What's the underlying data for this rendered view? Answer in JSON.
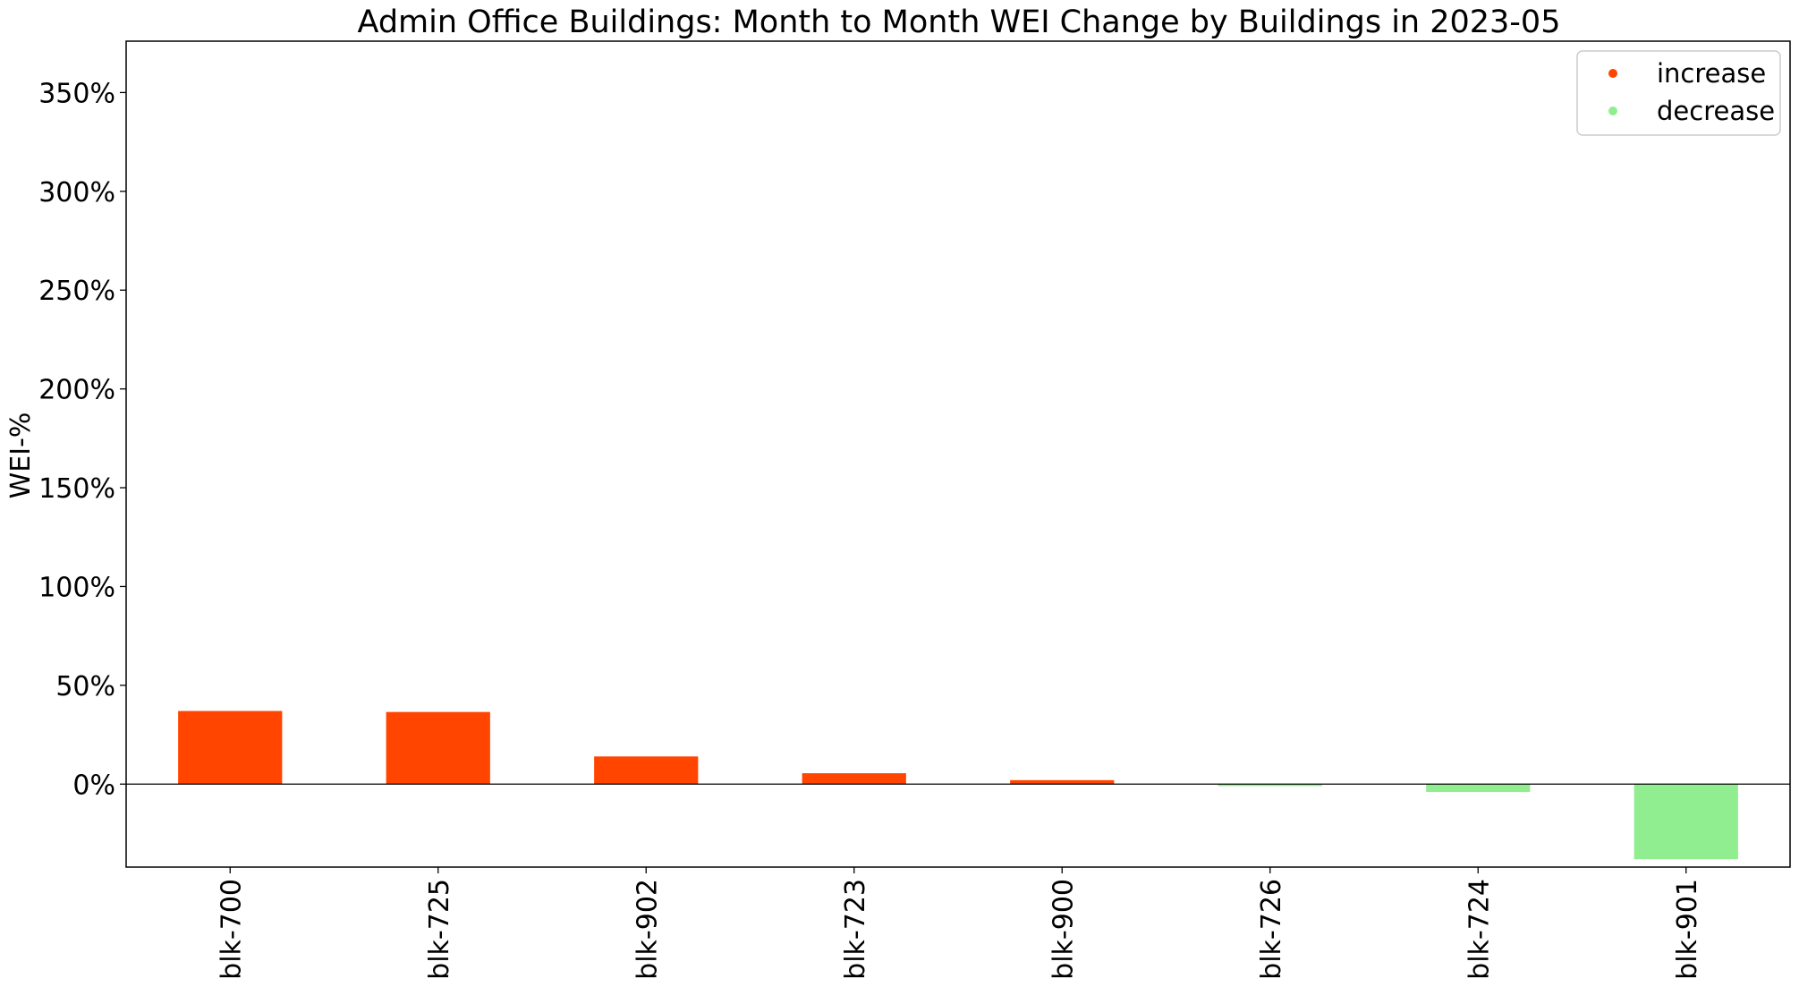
{
  "chart_data": {
    "type": "bar",
    "title": "Admin Office Buildings:  Month to Month WEI Change by Buildings in 2023-05",
    "xlabel": "",
    "ylabel": "WEI-%",
    "ylim": [
      -42,
      376
    ],
    "yticks": [
      0,
      50,
      100,
      150,
      200,
      250,
      300,
      350
    ],
    "ytick_labels": [
      "0%",
      "50%",
      "100%",
      "150%",
      "200%",
      "250%",
      "300%",
      "350%"
    ],
    "categories": [
      "blk-700",
      "blk-725",
      "blk-902",
      "blk-723",
      "blk-900",
      "blk-726",
      "blk-724",
      "blk-901"
    ],
    "values": [
      37,
      36.5,
      14,
      5.5,
      2,
      -1,
      -4,
      -38
    ],
    "colors": {
      "increase": "#ff4500",
      "decrease": "#90ee90"
    },
    "grid": false,
    "legend": {
      "position": "top-right",
      "entries": [
        {
          "label": "increase",
          "color": "#ff4500"
        },
        {
          "label": "decrease",
          "color": "#90ee90"
        }
      ]
    }
  }
}
